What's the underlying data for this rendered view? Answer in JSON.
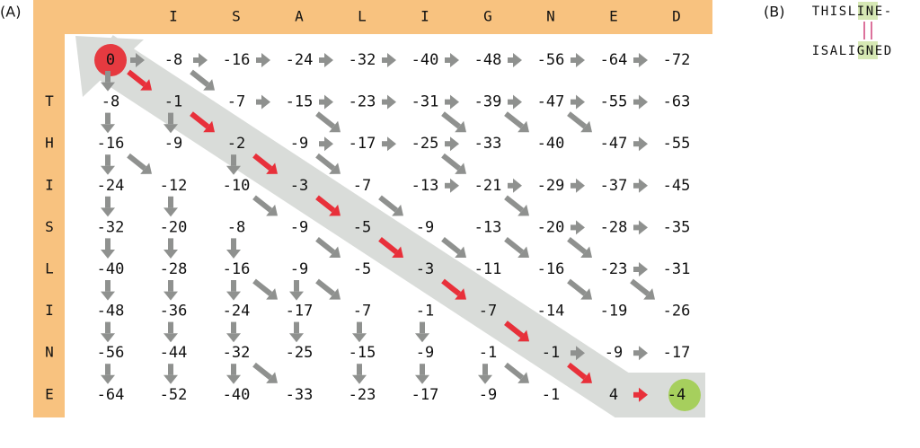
{
  "panel_a": {
    "label": "(A)",
    "column_headers": [
      "I",
      "S",
      "A",
      "L",
      "I",
      "G",
      "N",
      "E",
      "D"
    ],
    "row_headers": [
      "T",
      "H",
      "I",
      "S",
      "L",
      "I",
      "N",
      "E"
    ],
    "rows": [
      [
        0,
        -8,
        -16,
        -24,
        -32,
        -40,
        -48,
        -56,
        -64,
        -72
      ],
      [
        -8,
        -1,
        -7,
        -15,
        -23,
        -31,
        -39,
        -47,
        -55,
        -63
      ],
      [
        -16,
        -9,
        -2,
        -9,
        -17,
        -25,
        -33,
        -40,
        -47,
        -55
      ],
      [
        -24,
        -12,
        -10,
        -3,
        -7,
        -13,
        -21,
        -29,
        -37,
        -45
      ],
      [
        -32,
        -20,
        -8,
        -9,
        -5,
        -9,
        -13,
        -20,
        -28,
        -35
      ],
      [
        -40,
        -28,
        -16,
        -9,
        -5,
        -3,
        -11,
        -16,
        -23,
        -31
      ],
      [
        -48,
        -36,
        -24,
        -17,
        -7,
        -1,
        -7,
        -14,
        -19,
        -26
      ],
      [
        -56,
        -44,
        -32,
        -25,
        -15,
        -9,
        -1,
        -1,
        -9,
        -17
      ],
      [
        -64,
        -52,
        -40,
        -33,
        -23,
        -17,
        -9,
        -1,
        4,
        -4
      ]
    ]
  },
  "panel_b": {
    "label": "(B)",
    "sequence_1": [
      "T",
      "H",
      "I",
      "S",
      "L",
      "I",
      "N",
      "E",
      "-"
    ],
    "sequence_2": [
      "I",
      "S",
      "A",
      "L",
      "I",
      "G",
      "N",
      "E",
      "D"
    ]
  }
}
